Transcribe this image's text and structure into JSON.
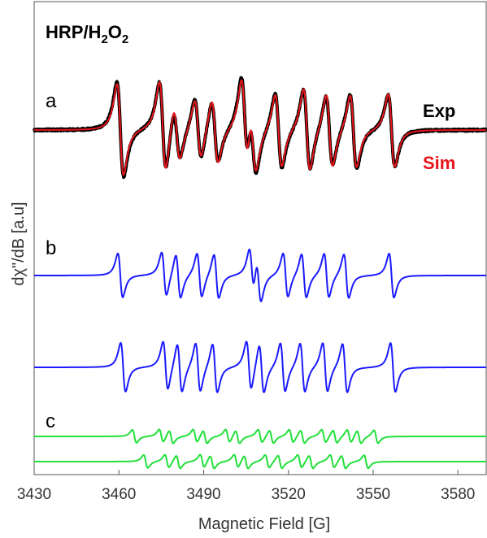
{
  "chart_data": {
    "type": "line",
    "title": "HRP/H2O2",
    "title_parts": {
      "main": "HRP/H",
      "sub1": "2",
      "mid": "O",
      "sub2": "2"
    },
    "xlabel": "Magnetic Field [G]",
    "ylabel": "dχ\"/dB [a.u]",
    "xlim": [
      3430,
      3590
    ],
    "x_ticks": [
      "3430",
      "3460",
      "3490",
      "3520",
      "3550",
      "3580"
    ],
    "y_ticks_shown": false,
    "grid": false,
    "legend_placement": "right",
    "panels": [
      {
        "label": "a",
        "series": [
          "Exp",
          "Sim"
        ]
      },
      {
        "label": "b",
        "series": [
          "b-component-1",
          "b-component-2"
        ]
      },
      {
        "label": "c",
        "series": [
          "c-component-1",
          "c-component-2"
        ]
      }
    ],
    "series": [
      {
        "name": "Exp",
        "color": "#000000",
        "panel": "a",
        "lines": [
          3460.5,
          3475.5,
          3480.5,
          3488.0,
          3494.0,
          3504.5,
          3507.5,
          3516.5,
          3526.5,
          3534.5,
          3543.0,
          3556.5
        ],
        "amplitudes": [
          1.0,
          0.95,
          0.55,
          0.65,
          0.65,
          0.95,
          0.7,
          0.8,
          0.85,
          0.75,
          0.8,
          0.75
        ]
      },
      {
        "name": "Sim",
        "color": "#e8151b",
        "panel": "a",
        "lines": [
          3460.5,
          3475.5,
          3480.5,
          3488.0,
          3494.0,
          3504.5,
          3507.5,
          3516.5,
          3526.5,
          3534.5,
          3543.0,
          3556.5
        ],
        "amplitudes": [
          1.0,
          1.0,
          0.6,
          0.65,
          0.7,
          0.95,
          0.7,
          0.8,
          0.9,
          0.8,
          0.8,
          0.8
        ]
      },
      {
        "name": "b-component-1",
        "color": "#1a1aff",
        "panel": "b",
        "lines": [
          3460.5,
          3476.0,
          3481.0,
          3488.5,
          3494.5,
          3507.0,
          3509.5,
          3519.0,
          3525.5,
          3533.5,
          3540.5,
          3556.5
        ],
        "amplitudes": [
          1,
          1,
          1,
          1,
          1,
          1,
          1,
          1,
          1,
          1,
          1,
          1
        ]
      },
      {
        "name": "b-component-2",
        "color": "#1a1aff",
        "panel": "b",
        "lines": [
          3461.5,
          3476.5,
          3481.5,
          3488.0,
          3494.0,
          3506.0,
          3510.5,
          3518.0,
          3525.0,
          3533.0,
          3540.0,
          3557.0
        ],
        "amplitudes": [
          1,
          1,
          1,
          1,
          1,
          1,
          1,
          1,
          1,
          1,
          1,
          1
        ]
      },
      {
        "name": "c-component-1",
        "color": "#22e03a",
        "panel": "c",
        "lines": [
          3465.5,
          3475.0,
          3478.5,
          3487.0,
          3490.5,
          3498.5,
          3502.0,
          3510.0,
          3514.0,
          3521.0,
          3525.0,
          3532.5,
          3536.5,
          3541.5,
          3545.0,
          3551.0
        ],
        "amplitudes": [
          1,
          1,
          1,
          1,
          1,
          1,
          1,
          1,
          1,
          1,
          1,
          1,
          1,
          1,
          1,
          1
        ]
      },
      {
        "name": "c-component-2",
        "color": "#22e03a",
        "panel": "c",
        "lines": [
          3469.5,
          3477.0,
          3481.0,
          3489.5,
          3493.0,
          3501.5,
          3505.0,
          3512.5,
          3517.0,
          3524.0,
          3528.0,
          3535.5,
          3539.5,
          3547.5
        ],
        "amplitudes": [
          1,
          1,
          1,
          1,
          1,
          1,
          1,
          1,
          1,
          1,
          1,
          1,
          1,
          1
        ]
      }
    ]
  }
}
